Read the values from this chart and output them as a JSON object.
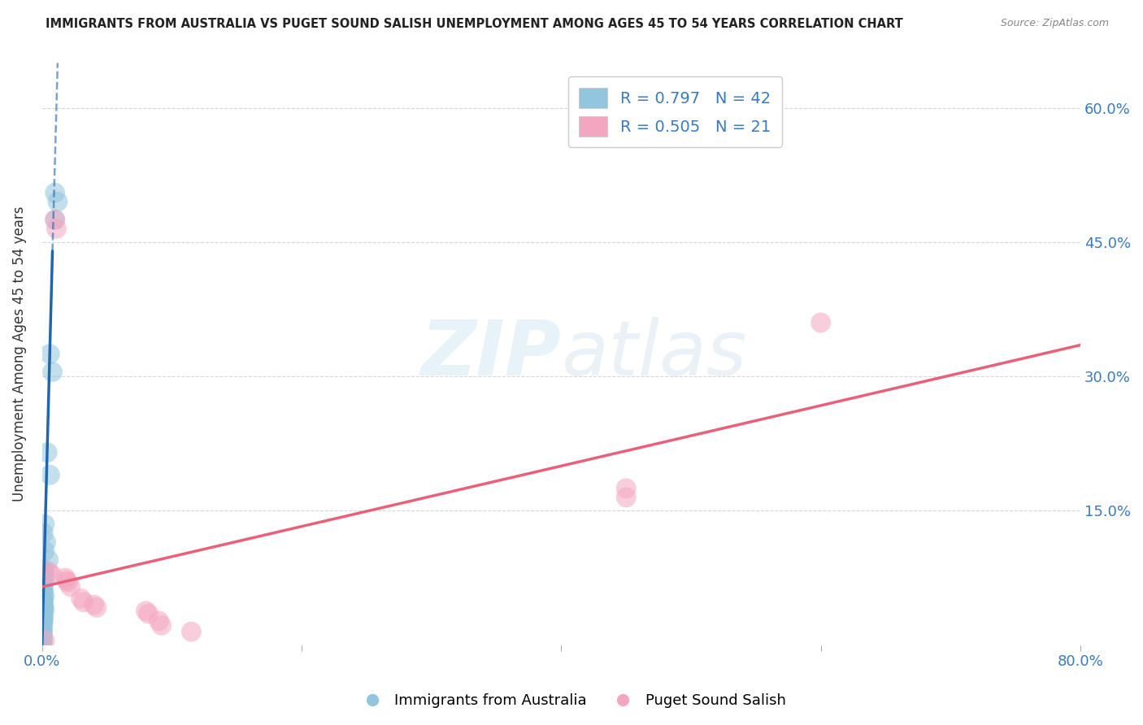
{
  "title": "IMMIGRANTS FROM AUSTRALIA VS PUGET SOUND SALISH UNEMPLOYMENT AMONG AGES 45 TO 54 YEARS CORRELATION CHART",
  "source": "Source: ZipAtlas.com",
  "ylabel": "Unemployment Among Ages 45 to 54 years",
  "xlim": [
    0,
    0.8
  ],
  "ylim": [
    0,
    0.65
  ],
  "xticks": [
    0.0,
    0.2,
    0.4,
    0.6,
    0.8
  ],
  "xticklabels": [
    "0.0%",
    "",
    "",
    "",
    "80.0%"
  ],
  "yticks": [
    0.0,
    0.15,
    0.3,
    0.45,
    0.6
  ],
  "yticklabels": [
    "",
    "15.0%",
    "30.0%",
    "45.0%",
    "60.0%"
  ],
  "watermark_zip": "ZIP",
  "watermark_atlas": "atlas",
  "legend_blue_r": "0.797",
  "legend_blue_n": "42",
  "legend_pink_r": "0.505",
  "legend_pink_n": "21",
  "blue_color": "#92c5de",
  "pink_color": "#f4a6c0",
  "blue_line_color": "#2166ac",
  "pink_line_color": "#e8607a",
  "blue_scatter": [
    [
      0.01,
      0.505
    ],
    [
      0.012,
      0.495
    ],
    [
      0.01,
      0.475
    ],
    [
      0.006,
      0.325
    ],
    [
      0.008,
      0.305
    ],
    [
      0.004,
      0.215
    ],
    [
      0.006,
      0.19
    ],
    [
      0.002,
      0.135
    ],
    [
      0.001,
      0.125
    ],
    [
      0.003,
      0.115
    ],
    [
      0.002,
      0.105
    ],
    [
      0.005,
      0.095
    ],
    [
      0.001,
      0.085
    ],
    [
      0.001,
      0.082
    ],
    [
      0.002,
      0.08
    ],
    [
      0.001,
      0.075
    ],
    [
      0.002,
      0.072
    ],
    [
      0.001,
      0.065
    ],
    [
      0.001,
      0.062
    ],
    [
      0.001,
      0.058
    ],
    [
      0.002,
      0.055
    ],
    [
      0.001,
      0.052
    ],
    [
      0.001,
      0.05
    ],
    [
      0.001,
      0.048
    ],
    [
      0.001,
      0.045
    ],
    [
      0.001,
      0.042
    ],
    [
      0.002,
      0.04
    ],
    [
      0.001,
      0.038
    ],
    [
      0.001,
      0.035
    ],
    [
      0.001,
      0.032
    ],
    [
      0.001,
      0.03
    ],
    [
      0.0008,
      0.027
    ],
    [
      0.0008,
      0.025
    ],
    [
      0.0006,
      0.022
    ],
    [
      0.0005,
      0.018
    ],
    [
      0.0005,
      0.015
    ],
    [
      0.0003,
      0.012
    ],
    [
      0.0003,
      0.01
    ],
    [
      0.0003,
      0.008
    ],
    [
      0.0002,
      0.005
    ],
    [
      0.0002,
      0.003
    ],
    [
      0.0001,
      0.001
    ]
  ],
  "pink_scatter": [
    [
      0.01,
      0.475
    ],
    [
      0.011,
      0.465
    ],
    [
      0.005,
      0.082
    ],
    [
      0.008,
      0.078
    ],
    [
      0.018,
      0.075
    ],
    [
      0.019,
      0.072
    ],
    [
      0.02,
      0.07
    ],
    [
      0.022,
      0.065
    ],
    [
      0.03,
      0.052
    ],
    [
      0.032,
      0.048
    ],
    [
      0.04,
      0.045
    ],
    [
      0.042,
      0.042
    ],
    [
      0.08,
      0.038
    ],
    [
      0.082,
      0.035
    ],
    [
      0.09,
      0.027
    ],
    [
      0.092,
      0.022
    ],
    [
      0.115,
      0.015
    ],
    [
      0.45,
      0.175
    ],
    [
      0.45,
      0.165
    ],
    [
      0.6,
      0.36
    ],
    [
      0.002,
      0.005
    ]
  ],
  "blue_trendline_solid": [
    [
      0.0,
      0.0
    ],
    [
      0.008,
      0.44
    ]
  ],
  "blue_trendline_dashed": [
    [
      0.008,
      0.44
    ],
    [
      0.012,
      0.65
    ]
  ],
  "pink_trendline": [
    [
      0.0,
      0.065
    ],
    [
      0.8,
      0.335
    ]
  ]
}
